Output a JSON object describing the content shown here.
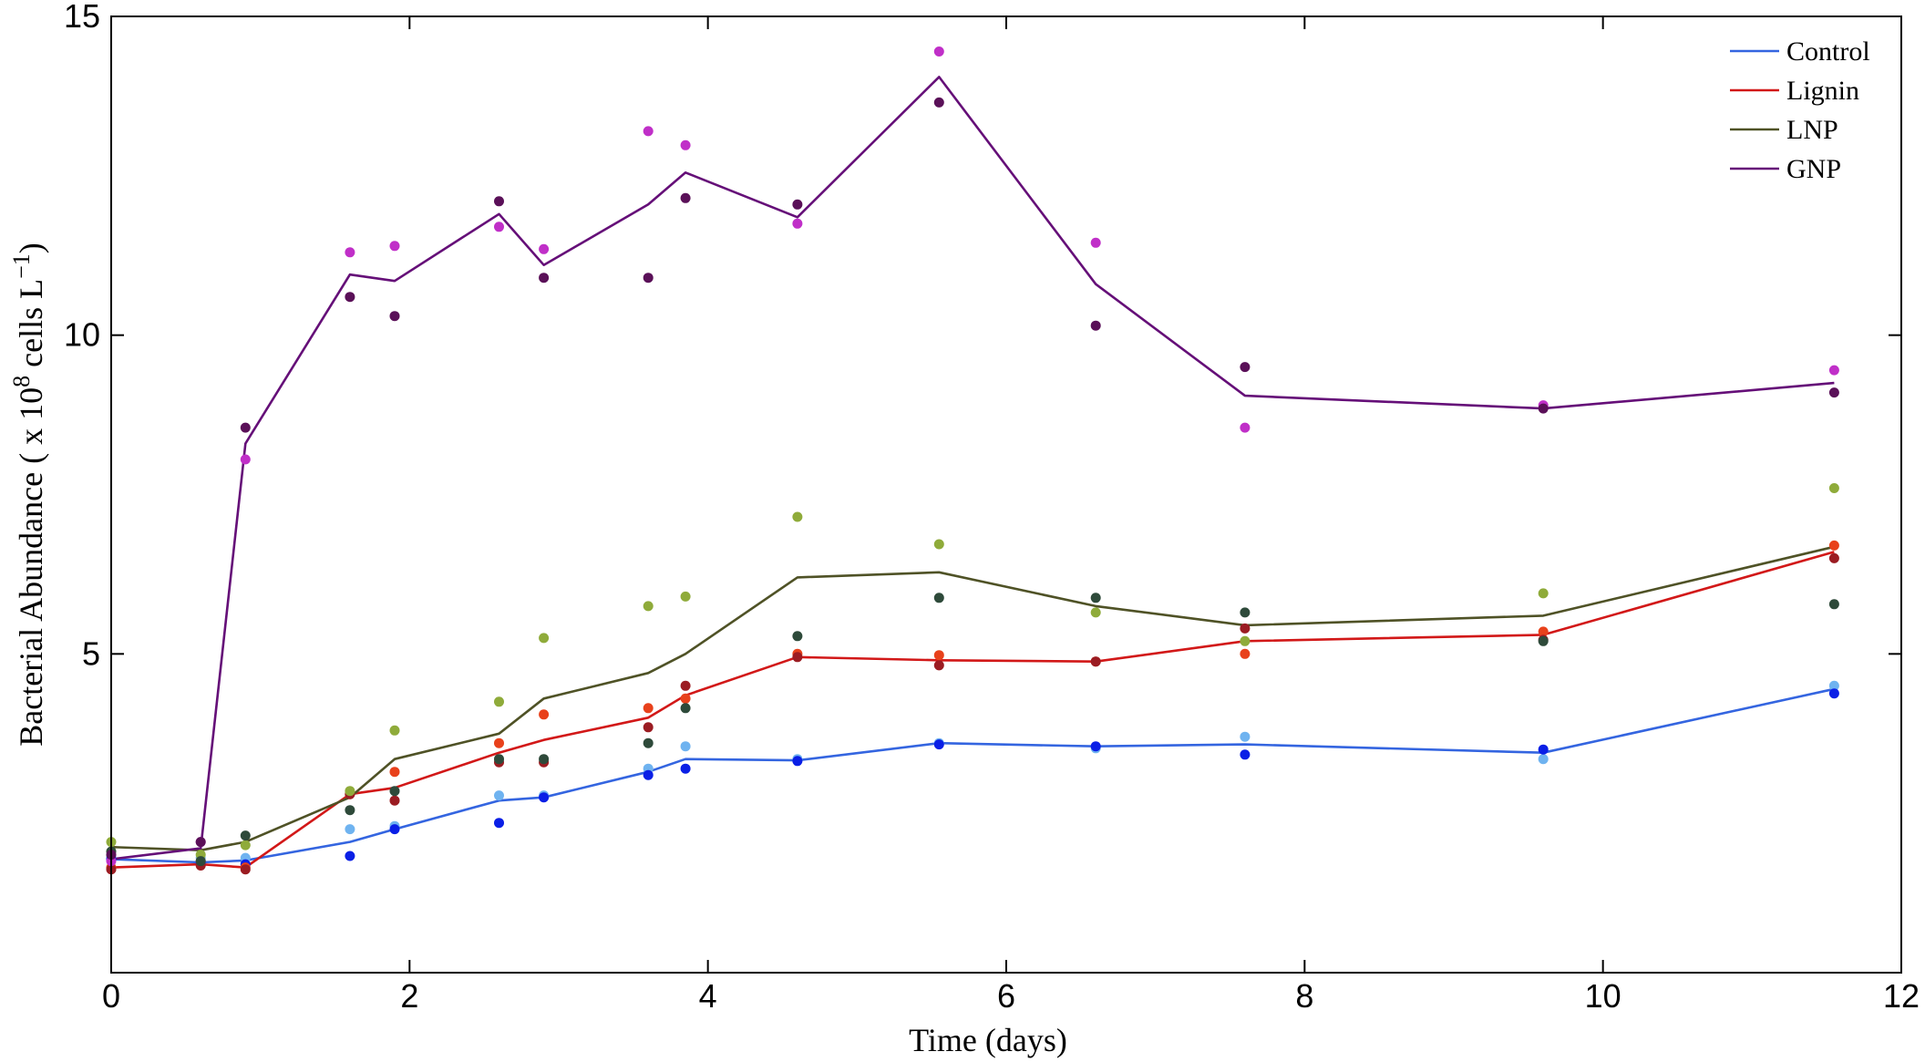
{
  "chart_data": {
    "type": "line",
    "title": "",
    "xlabel": "Time (days)",
    "ylabel_prefix": "Bacterial Abundance ( x 10",
    "ylabel_exp1": "8",
    "ylabel_mid": " cells L",
    "ylabel_exp2": "−1",
    "ylabel_suffix": ")",
    "xlim": [
      0,
      12
    ],
    "ylim": [
      0,
      15
    ],
    "ylim_note": "plot floor is about -0.1 below axis start",
    "xticks": [
      "0",
      "2",
      "4",
      "6",
      "8",
      "10",
      "12"
    ],
    "yticks": [
      "5",
      "10",
      "15"
    ],
    "legend_position": "top-right",
    "x": [
      0,
      0.6,
      0.9,
      1.6,
      1.9,
      2.6,
      2.9,
      3.6,
      3.85,
      4.6,
      5.55,
      6.6,
      7.6,
      9.6,
      11.55
    ],
    "series": [
      {
        "name": "Control",
        "color": "#3465e0",
        "rep_colors": [
          "#6fb3f0",
          "#0a1fe6"
        ],
        "line": [
          1.78,
          1.73,
          1.76,
          2.05,
          2.25,
          2.7,
          2.75,
          3.15,
          3.35,
          3.33,
          3.6,
          3.55,
          3.58,
          3.45,
          4.45
        ],
        "rep1": [
          1.82,
          1.8,
          1.8,
          2.25,
          2.3,
          2.78,
          2.78,
          3.2,
          3.55,
          3.35,
          3.6,
          3.52,
          3.7,
          3.35,
          4.5
        ],
        "rep2": [
          1.78,
          1.72,
          1.7,
          1.83,
          2.25,
          2.35,
          2.75,
          3.1,
          3.2,
          3.32,
          3.58,
          3.55,
          3.42,
          3.5,
          4.38
        ]
      },
      {
        "name": "Lignin",
        "color": "#d21818",
        "rep_colors": [
          "#e8411b",
          "#9b1c22"
        ],
        "line": [
          1.65,
          1.7,
          1.65,
          2.8,
          2.9,
          3.45,
          3.65,
          4.0,
          4.35,
          4.95,
          4.9,
          4.88,
          5.2,
          5.3,
          6.6
        ],
        "rep1": [
          1.65,
          1.75,
          1.65,
          2.8,
          3.15,
          3.6,
          4.05,
          4.15,
          4.3,
          5.0,
          4.98,
          4.88,
          5.0,
          5.35,
          6.7
        ],
        "rep2": [
          1.62,
          1.68,
          1.62,
          2.8,
          2.7,
          3.3,
          3.3,
          3.85,
          4.5,
          4.95,
          4.82,
          4.88,
          5.4,
          5.22,
          6.5
        ]
      },
      {
        "name": "LNP",
        "color": "#4f5226",
        "rep_colors": [
          "#8fab3a",
          "#2e4a3a"
        ],
        "line": [
          1.97,
          1.92,
          2.05,
          2.75,
          3.35,
          3.75,
          4.3,
          4.7,
          5.0,
          6.2,
          6.28,
          5.75,
          5.45,
          5.6,
          6.68
        ],
        "rep1": [
          2.05,
          1.85,
          2.0,
          2.85,
          3.8,
          4.25,
          5.25,
          5.75,
          5.9,
          7.15,
          6.72,
          5.65,
          5.2,
          5.95,
          7.6
        ],
        "rep2": [
          1.9,
          1.75,
          2.15,
          2.55,
          2.85,
          3.35,
          3.35,
          3.6,
          4.15,
          5.28,
          5.88,
          5.88,
          5.65,
          5.2,
          5.78
        ]
      },
      {
        "name": "GNP",
        "color": "#650f78",
        "rep_colors": [
          "#c02fc8",
          "#5a1058"
        ],
        "line": [
          1.78,
          1.95,
          8.3,
          10.95,
          10.85,
          11.9,
          11.1,
          12.05,
          12.55,
          11.85,
          14.05,
          10.8,
          9.05,
          8.85,
          9.25
        ],
        "rep1": [
          1.75,
          2.05,
          8.05,
          11.3,
          11.4,
          11.7,
          11.35,
          13.2,
          12.98,
          11.75,
          14.45,
          11.45,
          8.55,
          8.9,
          9.45
        ],
        "rep2": [
          1.85,
          2.05,
          8.55,
          10.6,
          10.3,
          12.1,
          10.9,
          10.9,
          12.15,
          12.05,
          13.65,
          10.15,
          9.5,
          8.85,
          9.1
        ]
      }
    ]
  }
}
